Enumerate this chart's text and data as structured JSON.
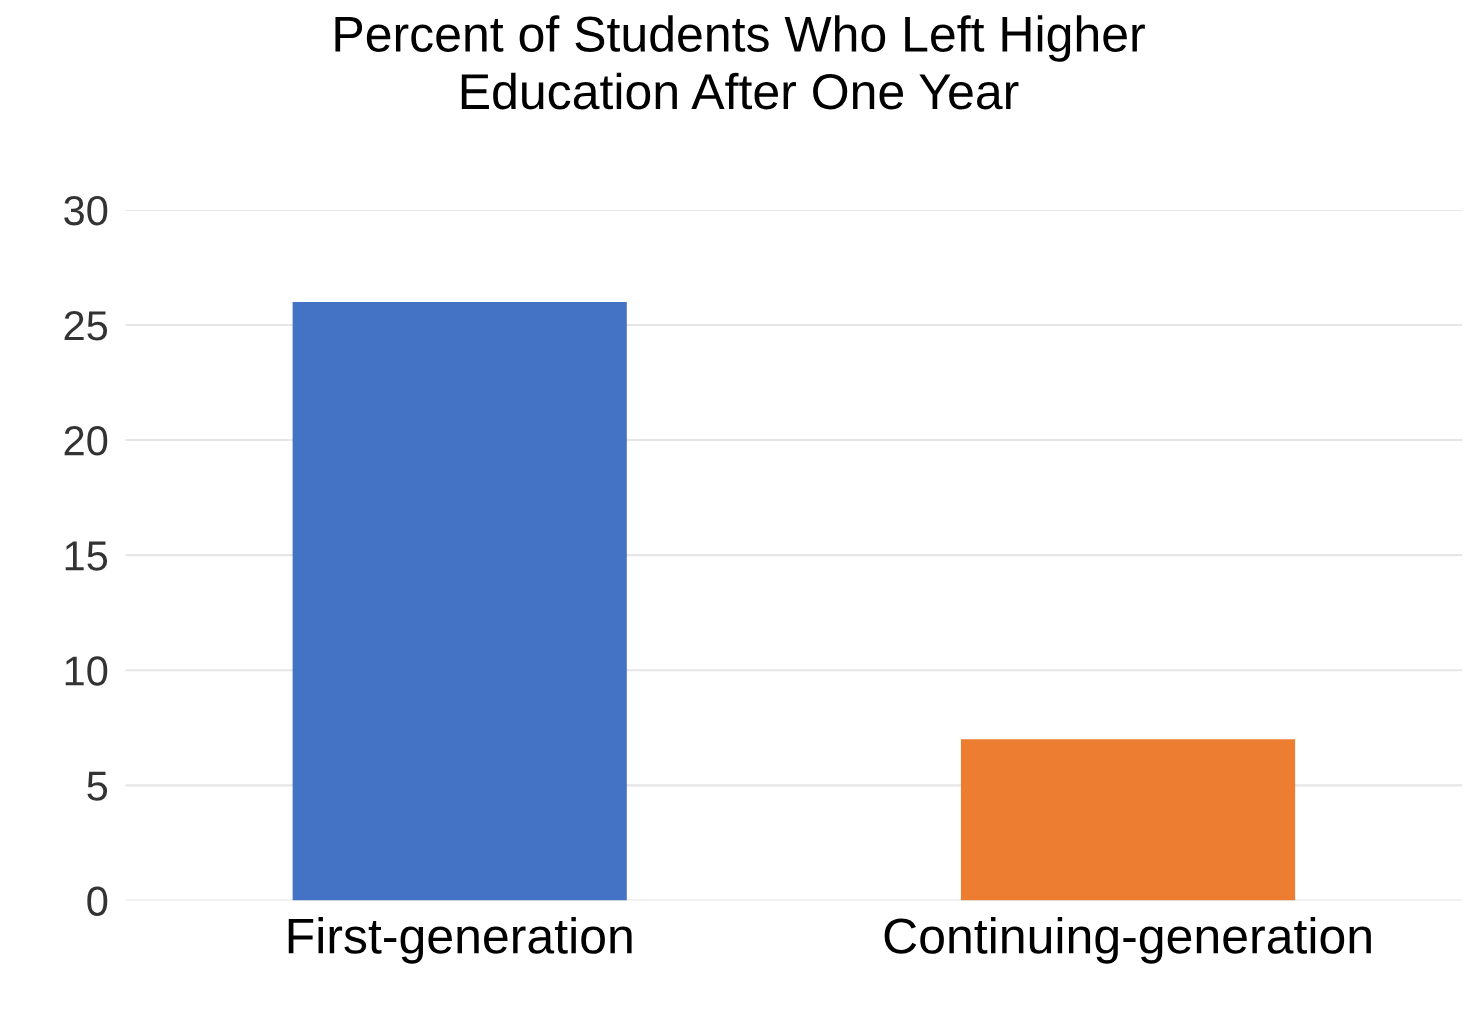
{
  "chart_data": {
    "type": "bar",
    "title": "Percent of Students Who Left Higher\nEducation After One Year",
    "categories": [
      "First-generation",
      "Continuing-generation"
    ],
    "values": [
      26,
      7
    ],
    "colors": [
      "#4472c4",
      "#ed7d31"
    ],
    "ylim": [
      0,
      30
    ],
    "yticks": [
      0,
      5,
      10,
      15,
      20,
      25,
      30
    ],
    "grid": "y"
  }
}
